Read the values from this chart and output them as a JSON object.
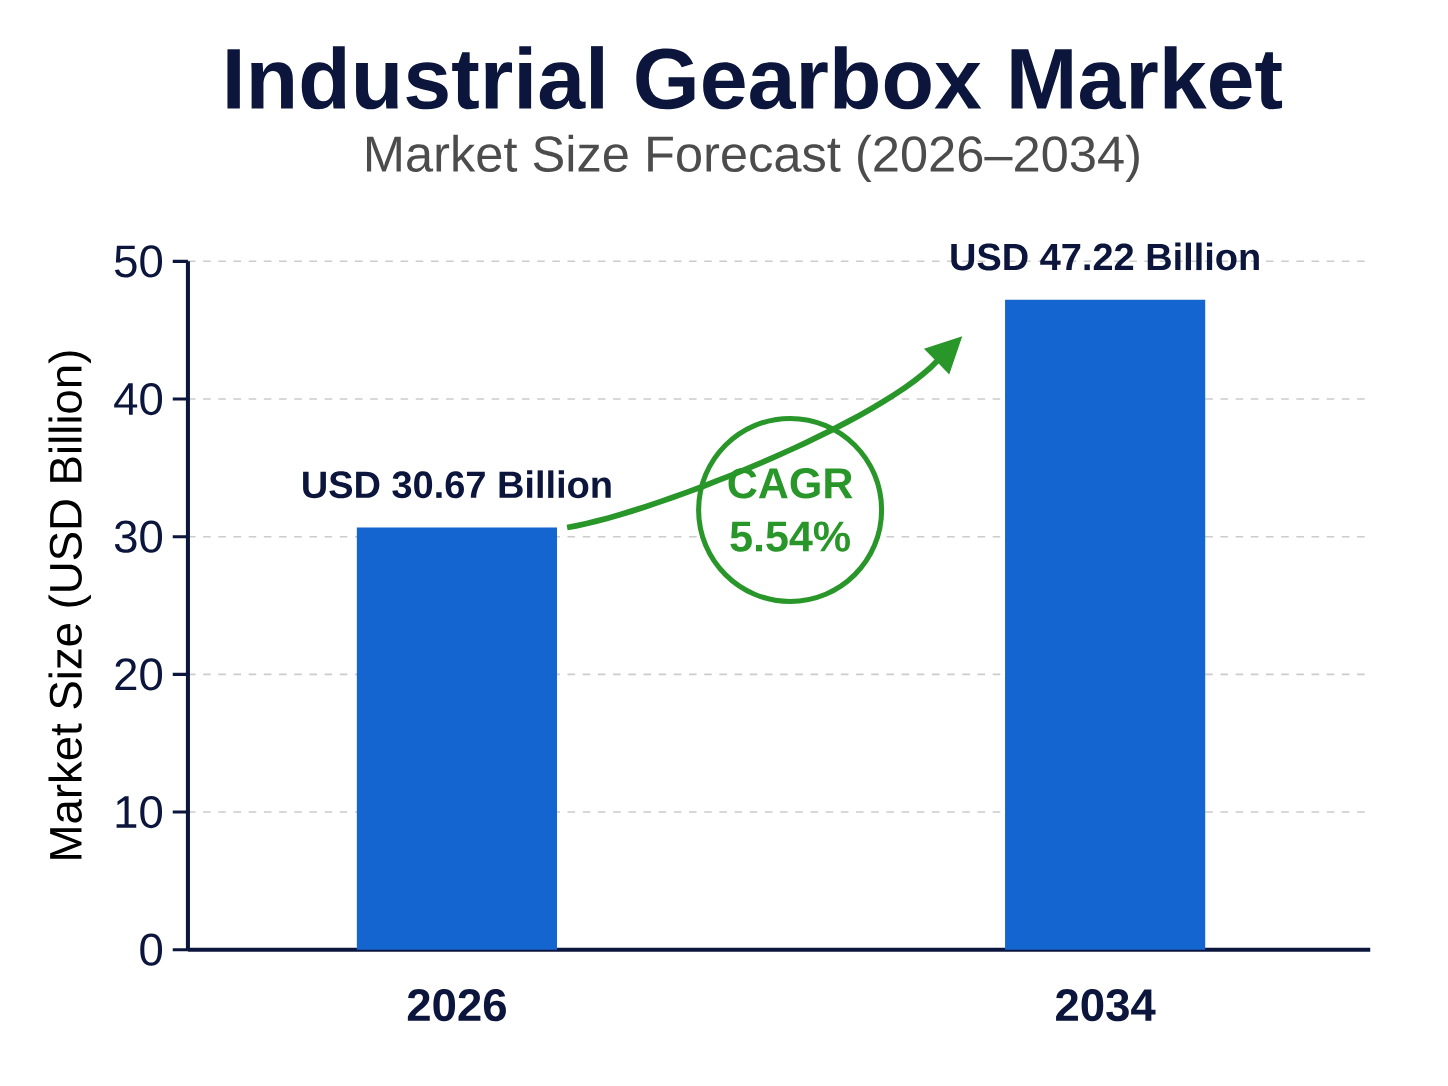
{
  "chart_data": {
    "type": "bar",
    "title": "Industrial Gearbox Market",
    "subtitle": "Market Size Forecast (2026–2034)",
    "ylabel": "Market Size (USD Billion)",
    "categories": [
      "2026",
      "2034"
    ],
    "values": [
      30.67,
      47.22
    ],
    "color": "#1565d0",
    "value_labels": [
      "USD 30.67 Billion",
      "USD 47.22 Billion"
    ],
    "ylim": [
      0,
      50
    ],
    "yticks": [
      0,
      10,
      20,
      30,
      40,
      50
    ],
    "grid": "y",
    "annotations": [
      "CAGR 5.54%"
    ]
  }
}
